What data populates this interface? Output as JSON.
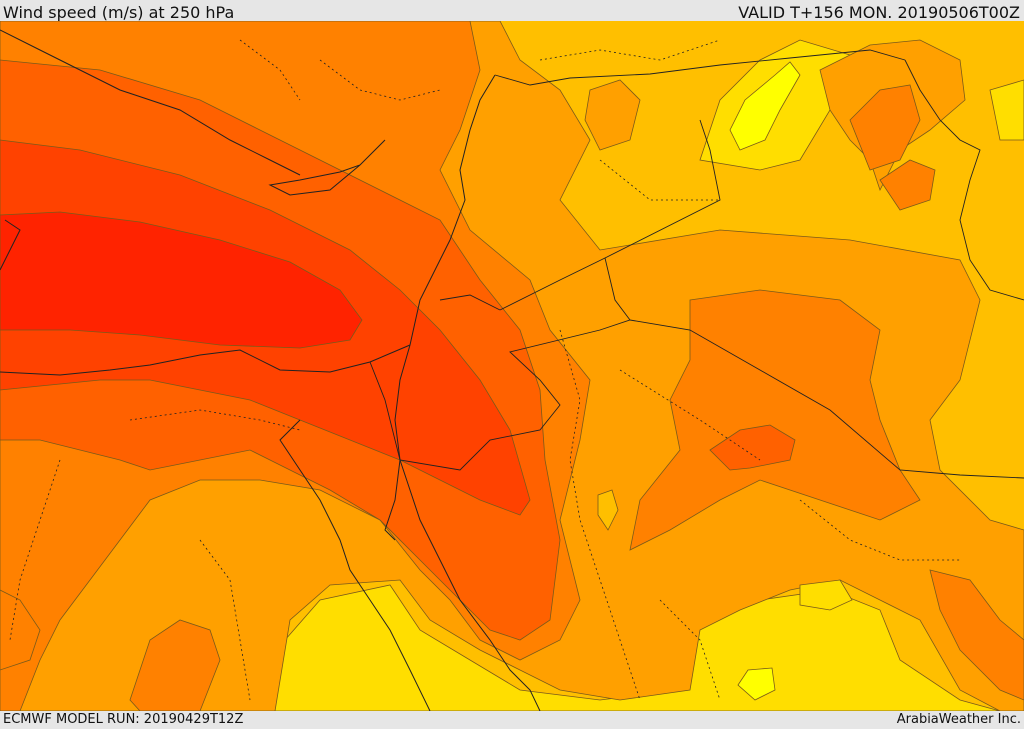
{
  "header": {
    "title": "Wind speed (m/s) at 250 hPa",
    "valid_time": "VALID T+156 MON. 20190506T00Z"
  },
  "footer": {
    "model_run": "ECMWF MODEL RUN: 20190429T12Z",
    "credit": "ArabiaWeather Inc."
  },
  "map": {
    "variable": "wind speed",
    "level": "250 hPa",
    "colors": {
      "yellow_bright": "#ffff00",
      "yellow": "#ffde00",
      "light_orange": "#ffbf00",
      "orange": "#ffa000",
      "dark_orange": "#ff8100",
      "orange_red": "#ff6100",
      "red_orange": "#ff4200",
      "red": "#ff2300"
    }
  }
}
